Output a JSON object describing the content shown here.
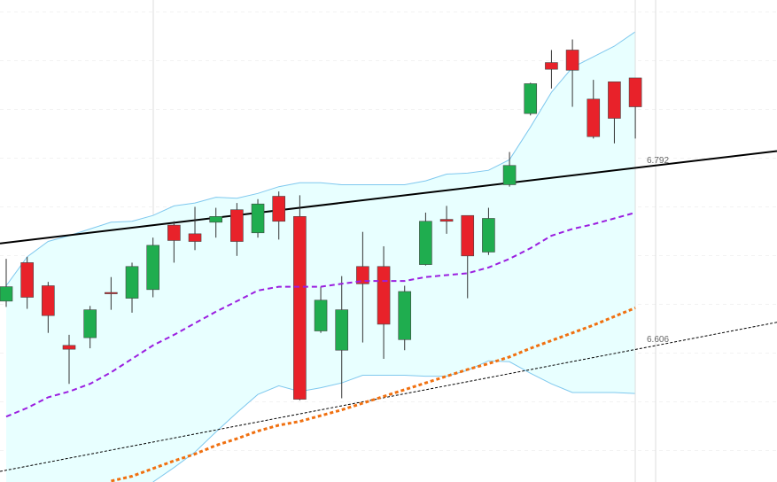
{
  "chart_data": {
    "type": "candlestick",
    "ylim": [
      6.458,
      6.959
    ],
    "up_color": "#1fad4f",
    "down_color": "#e8222a",
    "open": [
      6.646,
      6.686,
      6.662,
      6.6,
      6.608,
      6.655,
      6.649,
      6.658,
      6.725,
      6.716,
      6.728,
      6.741,
      6.717,
      6.755,
      6.734,
      6.615,
      6.595,
      6.682,
      6.682,
      6.606,
      6.684,
      6.731,
      6.735,
      6.697,
      6.767,
      6.841,
      6.894,
      6.907,
      6.856,
      6.874,
      6.878
    ],
    "high": [
      6.69,
      6.692,
      6.666,
      6.611,
      6.641,
      6.671,
      6.686,
      6.712,
      6.729,
      6.744,
      6.743,
      6.748,
      6.752,
      6.76,
      6.756,
      6.661,
      6.672,
      6.718,
      6.703,
      6.662,
      6.738,
      6.745,
      6.735,
      6.743,
      6.801,
      6.873,
      6.907,
      6.918,
      6.876,
      6.874,
      6.878
    ],
    "low": [
      6.64,
      6.638,
      6.613,
      6.56,
      6.597,
      6.637,
      6.634,
      6.65,
      6.686,
      6.699,
      6.712,
      6.693,
      6.712,
      6.71,
      6.543,
      6.613,
      6.545,
      6.603,
      6.586,
      6.595,
      6.683,
      6.716,
      6.649,
      6.694,
      6.765,
      6.839,
      6.867,
      6.848,
      6.815,
      6.81,
      6.815
    ],
    "close": [
      6.661,
      6.65,
      6.631,
      6.596,
      6.637,
      6.654,
      6.682,
      6.704,
      6.709,
      6.708,
      6.734,
      6.708,
      6.747,
      6.729,
      6.544,
      6.647,
      6.637,
      6.664,
      6.622,
      6.656,
      6.729,
      6.729,
      6.693,
      6.732,
      6.787,
      6.872,
      6.887,
      6.886,
      6.817,
      6.836,
      6.848
    ],
    "band": {
      "color": "#7fc8ee",
      "fill": "#e8ffff",
      "upper": [
        6.662,
        6.692,
        6.708,
        6.714,
        6.721,
        6.728,
        6.729,
        6.735,
        6.745,
        6.748,
        6.754,
        6.753,
        6.758,
        6.765,
        6.769,
        6.769,
        6.767,
        6.767,
        6.767,
        6.767,
        6.771,
        6.778,
        6.779,
        6.782,
        6.793,
        6.827,
        6.863,
        6.889,
        6.9,
        6.911,
        6.926
      ],
      "lower": [
        null,
        null,
        null,
        null,
        null,
        null,
        null,
        6.458,
        6.473,
        6.489,
        6.51,
        6.53,
        6.549,
        6.558,
        6.552,
        6.556,
        6.561,
        6.569,
        6.569,
        6.569,
        6.568,
        6.568,
        6.574,
        6.584,
        6.583,
        6.571,
        6.56,
        6.551,
        6.551,
        6.551,
        6.55
      ]
    },
    "overlays": [
      {
        "color": "#9b1fe0",
        "dash": "6 4",
        "width": 2,
        "values": [
          6.526,
          6.535,
          6.546,
          6.552,
          6.56,
          6.572,
          6.586,
          6.6,
          6.611,
          6.623,
          6.635,
          6.646,
          6.657,
          6.661,
          6.661,
          6.661,
          6.664,
          6.667,
          6.667,
          6.667,
          6.671,
          6.673,
          6.675,
          6.681,
          6.69,
          6.701,
          6.714,
          6.721,
          6.726,
          6.732,
          6.738
        ]
      },
      {
        "color": "#f07010",
        "dash": "4 3",
        "width": 3,
        "values": [
          null,
          null,
          null,
          null,
          null,
          6.459,
          6.464,
          6.472,
          6.48,
          6.487,
          6.496,
          6.503,
          6.511,
          6.517,
          6.521,
          6.527,
          6.533,
          6.54,
          6.547,
          6.554,
          6.561,
          6.568,
          6.575,
          6.581,
          6.588,
          6.597,
          6.605,
          6.613,
          6.621,
          6.63,
          6.639
        ]
      }
    ],
    "lines": [
      {
        "color": "#000000",
        "width": 2,
        "values": [
          6.706,
          6.802
        ]
      },
      {
        "color": "#000000",
        "width": 1,
        "dash": "3 2",
        "values": [
          6.469,
          6.624
        ]
      }
    ],
    "price_labels": [
      6.792,
      6.606
    ]
  }
}
